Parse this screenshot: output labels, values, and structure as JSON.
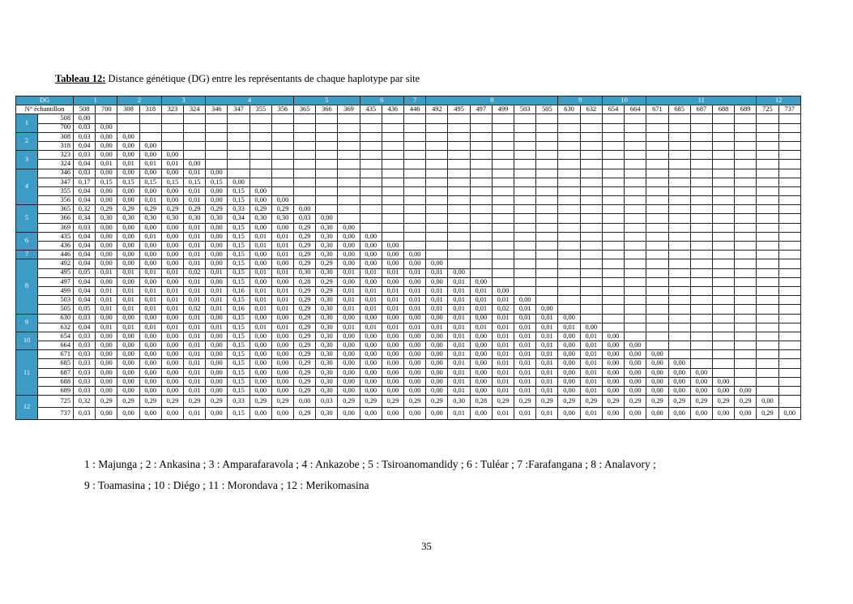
{
  "caption": {
    "label": "Tableau 12:",
    "text": " Distance génétique (DG) entre les représentants de chaque haplotype par site"
  },
  "table": {
    "corner_label": "DG",
    "sample_header": "N° échantillon",
    "columns": [
      "508",
      "700",
      "308",
      "318",
      "323",
      "324",
      "346",
      "347",
      "355",
      "356",
      "365",
      "366",
      "369",
      "435",
      "436",
      "446",
      "492",
      "495",
      "497",
      "499",
      "503",
      "505",
      "630",
      "632",
      "654",
      "664",
      "671",
      "685",
      "687",
      "688",
      "689",
      "725",
      "737"
    ],
    "column_groups": [
      {
        "label": "1",
        "span": 2
      },
      {
        "label": "2",
        "span": 2
      },
      {
        "label": "3",
        "span": 2
      },
      {
        "label": "4",
        "span": 4
      },
      {
        "label": "5",
        "span": 3
      },
      {
        "label": "6",
        "span": 2
      },
      {
        "label": "7",
        "span": 1
      },
      {
        "label": "8",
        "span": 6
      },
      {
        "label": "9",
        "span": 2
      },
      {
        "label": "10",
        "span": 2
      },
      {
        "label": "11",
        "span": 5
      },
      {
        "label": "12",
        "span": 2
      }
    ],
    "row_groups": [
      {
        "label": "1",
        "rows": [
          {
            "sample": "508",
            "values": [
              "0,00"
            ]
          },
          {
            "sample": "700",
            "values": [
              "0,03",
              "0,00"
            ]
          }
        ]
      },
      {
        "label": "2",
        "rows": [
          {
            "sample": "308",
            "values": [
              "0,03",
              "0,00",
              "0,00"
            ]
          },
          {
            "sample": "318",
            "values": [
              "0,04",
              "0,00",
              "0,00",
              "0,00"
            ]
          }
        ]
      },
      {
        "label": "3",
        "rows": [
          {
            "sample": "323",
            "values": [
              "0,03",
              "0,00",
              "0,00",
              "0,00",
              "0,00"
            ]
          },
          {
            "sample": "324",
            "values": [
              "0,04",
              "0,01",
              "0,01",
              "0,01",
              "0,01",
              "0,00"
            ]
          }
        ]
      },
      {
        "label": "4",
        "rows": [
          {
            "sample": "346",
            "values": [
              "0,03",
              "0,00",
              "0,00",
              "0,00",
              "0,00",
              "0,01",
              "0,00"
            ]
          },
          {
            "sample": "347",
            "values": [
              "0,17",
              "0,15",
              "0,15",
              "0,15",
              "0,15",
              "0,15",
              "0,15",
              "0,00"
            ]
          },
          {
            "sample": "355",
            "values": [
              "0,04",
              "0,00",
              "0,00",
              "0,00",
              "0,00",
              "0,01",
              "0,00",
              "0,15",
              "0,00"
            ]
          },
          {
            "sample": "356",
            "values": [
              "0,04",
              "0,00",
              "0,00",
              "0,01",
              "0,00",
              "0,01",
              "0,00",
              "0,15",
              "0,00",
              "0,00"
            ]
          }
        ]
      },
      {
        "label": "5",
        "rows": [
          {
            "sample": "365",
            "values": [
              "0,32",
              "0,29",
              "0,29",
              "0,29",
              "0,29",
              "0,29",
              "0,29",
              "0,33",
              "0,29",
              "0,29",
              "0,00"
            ]
          },
          {
            "sample": "366",
            "values": [
              "0,34",
              "0,30",
              "0,30",
              "0,30",
              "0,30",
              "0,30",
              "0,30",
              "0,34",
              "0,30",
              "0,30",
              "0,03",
              "0,00"
            ]
          },
          {
            "sample": "369",
            "values": [
              "0,03",
              "0,00",
              "0,00",
              "0,00",
              "0,00",
              "0,01",
              "0,00",
              "0,15",
              "0,00",
              "0,00",
              "0,29",
              "0,30",
              "0,00"
            ]
          }
        ]
      },
      {
        "label": "6",
        "rows": [
          {
            "sample": "435",
            "values": [
              "0,04",
              "0,00",
              "0,00",
              "0,01",
              "0,00",
              "0,01",
              "0,00",
              "0,15",
              "0,01",
              "0,01",
              "0,29",
              "0,30",
              "0,00",
              "0,00"
            ]
          },
          {
            "sample": "436",
            "values": [
              "0,04",
              "0,00",
              "0,00",
              "0,00",
              "0,00",
              "0,01",
              "0,00",
              "0,15",
              "0,01",
              "0,01",
              "0,29",
              "0,30",
              "0,00",
              "0,00",
              "0,00"
            ]
          }
        ]
      },
      {
        "label": "7",
        "rows": [
          {
            "sample": "446",
            "values": [
              "0,04",
              "0,00",
              "0,00",
              "0,00",
              "0,00",
              "0,01",
              "0,00",
              "0,15",
              "0,00",
              "0,01",
              "0,29",
              "0,30",
              "0,00",
              "0,00",
              "0,00",
              "0,00"
            ]
          }
        ]
      },
      {
        "label": "8",
        "rows": [
          {
            "sample": "492",
            "values": [
              "0,04",
              "0,00",
              "0,00",
              "0,00",
              "0,00",
              "0,01",
              "0,00",
              "0,15",
              "0,00",
              "0,00",
              "0,29",
              "0,29",
              "0,00",
              "0,00",
              "0,00",
              "0,00",
              "0,00"
            ]
          },
          {
            "sample": "495",
            "values": [
              "0,05",
              "0,01",
              "0,01",
              "0,01",
              "0,01",
              "0,02",
              "0,01",
              "0,15",
              "0,01",
              "0,01",
              "0,30",
              "0,30",
              "0,01",
              "0,01",
              "0,01",
              "0,01",
              "0,01",
              "0,00"
            ]
          },
          {
            "sample": "497",
            "values": [
              "0,04",
              "0,00",
              "0,00",
              "0,00",
              "0,00",
              "0,01",
              "0,00",
              "0,15",
              "0,00",
              "0,00",
              "0,28",
              "0,29",
              "0,00",
              "0,00",
              "0,00",
              "0,00",
              "0,00",
              "0,01",
              "0,00"
            ]
          },
          {
            "sample": "499",
            "values": [
              "0,04",
              "0,01",
              "0,01",
              "0,01",
              "0,01",
              "0,01",
              "0,01",
              "0,16",
              "0,01",
              "0,01",
              "0,29",
              "0,29",
              "0,01",
              "0,01",
              "0,01",
              "0,01",
              "0,01",
              "0,01",
              "0,01",
              "0,00"
            ]
          },
          {
            "sample": "503",
            "values": [
              "0,04",
              "0,01",
              "0,01",
              "0,01",
              "0,01",
              "0,01",
              "0,01",
              "0,15",
              "0,01",
              "0,01",
              "0,29",
              "0,30",
              "0,01",
              "0,01",
              "0,01",
              "0,01",
              "0,01",
              "0,01",
              "0,01",
              "0,01",
              "0,00"
            ]
          },
          {
            "sample": "505",
            "values": [
              "0,05",
              "0,01",
              "0,01",
              "0,01",
              "0,01",
              "0,02",
              "0,01",
              "0,16",
              "0,01",
              "0,01",
              "0,29",
              "0,30",
              "0,01",
              "0,01",
              "0,01",
              "0,01",
              "0,01",
              "0,01",
              "0,01",
              "0,02",
              "0,01",
              "0,00"
            ]
          }
        ]
      },
      {
        "label": "9",
        "rows": [
          {
            "sample": "630",
            "values": [
              "0,03",
              "0,00",
              "0,00",
              "0,00",
              "0,00",
              "0,01",
              "0,00",
              "0,15",
              "0,00",
              "0,00",
              "0,29",
              "0,30",
              "0,00",
              "0,00",
              "0,00",
              "0,00",
              "0,00",
              "0,01",
              "0,00",
              "0,01",
              "0,01",
              "0,01",
              "0,00"
            ]
          },
          {
            "sample": "632",
            "values": [
              "0,04",
              "0,01",
              "0,01",
              "0,01",
              "0,01",
              "0,01",
              "0,01",
              "0,15",
              "0,01",
              "0,01",
              "0,29",
              "0,30",
              "0,01",
              "0,01",
              "0,01",
              "0,01",
              "0,01",
              "0,01",
              "0,01",
              "0,01",
              "0,01",
              "0,01",
              "0,01",
              "0,00"
            ]
          }
        ]
      },
      {
        "label": "10",
        "rows": [
          {
            "sample": "654",
            "values": [
              "0,03",
              "0,00",
              "0,00",
              "0,00",
              "0,00",
              "0,01",
              "0,00",
              "0,15",
              "0,00",
              "0,00",
              "0,29",
              "0,30",
              "0,00",
              "0,00",
              "0,00",
              "0,00",
              "0,00",
              "0,01",
              "0,00",
              "0,01",
              "0,01",
              "0,01",
              "0,00",
              "0,01",
              "0,00"
            ]
          },
          {
            "sample": "664",
            "values": [
              "0,03",
              "0,00",
              "0,00",
              "0,00",
              "0,00",
              "0,01",
              "0,00",
              "0,15",
              "0,00",
              "0,00",
              "0,29",
              "0,30",
              "0,00",
              "0,00",
              "0,00",
              "0,00",
              "0,00",
              "0,01",
              "0,00",
              "0,01",
              "0,01",
              "0,01",
              "0,00",
              "0,01",
              "0,00",
              "0,00"
            ]
          }
        ]
      },
      {
        "label": "11",
        "rows": [
          {
            "sample": "671",
            "values": [
              "0,03",
              "0,00",
              "0,00",
              "0,00",
              "0,00",
              "0,01",
              "0,00",
              "0,15",
              "0,00",
              "0,00",
              "0,29",
              "0,30",
              "0,00",
              "0,00",
              "0,00",
              "0,00",
              "0,00",
              "0,01",
              "0,00",
              "0,01",
              "0,01",
              "0,01",
              "0,00",
              "0,01",
              "0,00",
              "0,00",
              "0,00"
            ]
          },
          {
            "sample": "685",
            "values": [
              "0,03",
              "0,00",
              "0,00",
              "0,00",
              "0,00",
              "0,01",
              "0,00",
              "0,15",
              "0,00",
              "0,00",
              "0,29",
              "0,30",
              "0,00",
              "0,00",
              "0,00",
              "0,00",
              "0,00",
              "0,01",
              "0,00",
              "0,01",
              "0,01",
              "0,01",
              "0,00",
              "0,01",
              "0,00",
              "0,00",
              "0,00",
              "0,00"
            ]
          },
          {
            "sample": "687",
            "values": [
              "0,03",
              "0,00",
              "0,00",
              "0,00",
              "0,00",
              "0,01",
              "0,00",
              "0,15",
              "0,00",
              "0,00",
              "0,29",
              "0,30",
              "0,00",
              "0,00",
              "0,00",
              "0,00",
              "0,00",
              "0,01",
              "0,00",
              "0,01",
              "0,01",
              "0,01",
              "0,00",
              "0,01",
              "0,00",
              "0,00",
              "0,00",
              "0,00",
              "0,00"
            ]
          },
          {
            "sample": "688",
            "values": [
              "0,03",
              "0,00",
              "0,00",
              "0,00",
              "0,00",
              "0,01",
              "0,00",
              "0,15",
              "0,00",
              "0,00",
              "0,29",
              "0,30",
              "0,00",
              "0,00",
              "0,00",
              "0,00",
              "0,00",
              "0,01",
              "0,00",
              "0,01",
              "0,01",
              "0,01",
              "0,00",
              "0,01",
              "0,00",
              "0,00",
              "0,00",
              "0,00",
              "0,00",
              "0,00"
            ]
          },
          {
            "sample": "689",
            "values": [
              "0,03",
              "0,00",
              "0,00",
              "0,00",
              "0,00",
              "0,01",
              "0,00",
              "0,15",
              "0,00",
              "0,00",
              "0,29",
              "0,30",
              "0,00",
              "0,00",
              "0,00",
              "0,00",
              "0,00",
              "0,01",
              "0,00",
              "0,01",
              "0,01",
              "0,01",
              "0,00",
              "0,01",
              "0,00",
              "0,00",
              "0,00",
              "0,00",
              "0,00",
              "0,00",
              "0,00"
            ]
          }
        ]
      },
      {
        "label": "12",
        "rows": [
          {
            "sample": "725",
            "values": [
              "0,32",
              "0,29",
              "0,29",
              "0,29",
              "0,29",
              "0,29",
              "0,29",
              "0,33",
              "0,29",
              "0,29",
              "0,00",
              "0,03",
              "0,29",
              "0,29",
              "0,29",
              "0,29",
              "0,29",
              "0,30",
              "0,28",
              "0,29",
              "0,29",
              "0,29",
              "0,29",
              "0,29",
              "0,29",
              "0,29",
              "0,29",
              "0,29",
              "0,29",
              "0,29",
              "0,29",
              "0,00"
            ]
          },
          {
            "sample": "737",
            "values": [
              "0,03",
              "0,00",
              "0,00",
              "0,00",
              "0,00",
              "0,01",
              "0,00",
              "0,15",
              "0,00",
              "0,00",
              "0,29",
              "0,30",
              "0,00",
              "0,00",
              "0,00",
              "0,00",
              "0,00",
              "0,01",
              "0,00",
              "0,01",
              "0,01",
              "0,01",
              "0,00",
              "0,01",
              "0,00",
              "0,00",
              "0,00",
              "0,00",
              "0,00",
              "0,00",
              "0,00",
              "0,29",
              "0,00"
            ]
          }
        ]
      }
    ]
  },
  "legend": {
    "line1": "1 : Majunga ; 2 : Ankasina ; 3 : Amparafaravola ; 4 : Ankazobe ; 5 : Tsiroanomandidy ; 6 : Tuléar ; 7 :Farafangana ; 8 : Analavory ;",
    "line2": "9 : Toamasina ; 10 : Diégo ; 11 : Morondava ; 12 : Merikomasina"
  },
  "page_number": "35",
  "colors": {
    "header_fill": "#3d9cc6",
    "header_text": "#ffffff",
    "grid": "#222222"
  }
}
